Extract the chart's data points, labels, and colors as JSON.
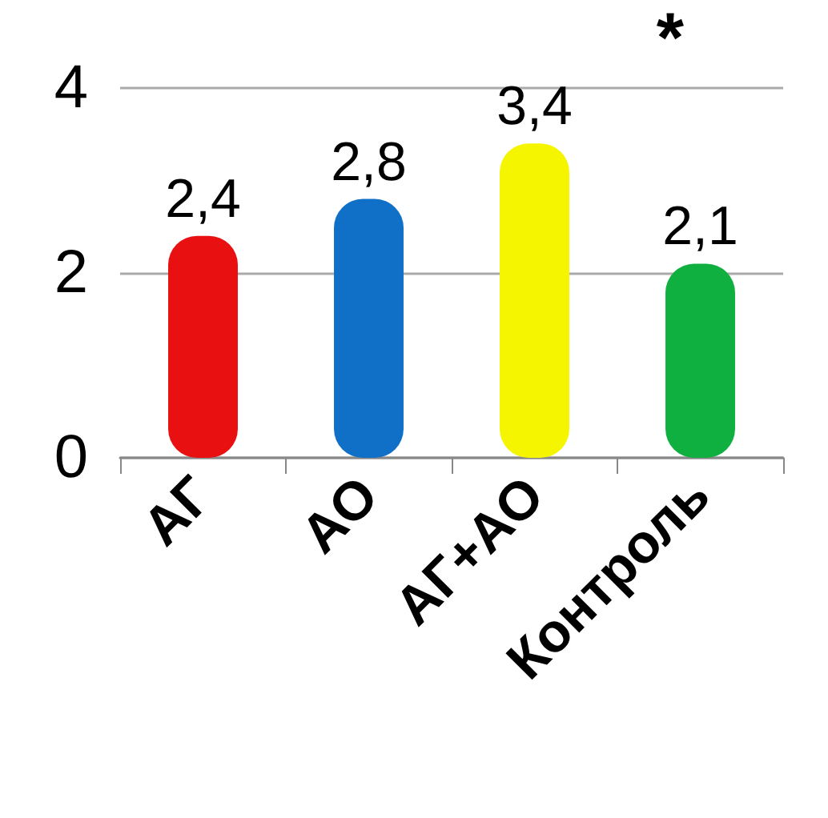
{
  "chart_data": {
    "type": "bar",
    "categories": [
      "АГ",
      "АО",
      "АГ+АО",
      "Контроль"
    ],
    "values": [
      2.4,
      2.8,
      3.4,
      2.1
    ],
    "colors": [
      "#e81010",
      "#1070c8",
      "#f5f500",
      "#10b040"
    ],
    "value_labels": [
      "2,4",
      "2,8",
      "3,4",
      "2,1"
    ],
    "ylim": [
      0,
      4
    ],
    "yticks": [
      0,
      2,
      4
    ],
    "grid": "y",
    "annotations": [
      "*"
    ]
  }
}
